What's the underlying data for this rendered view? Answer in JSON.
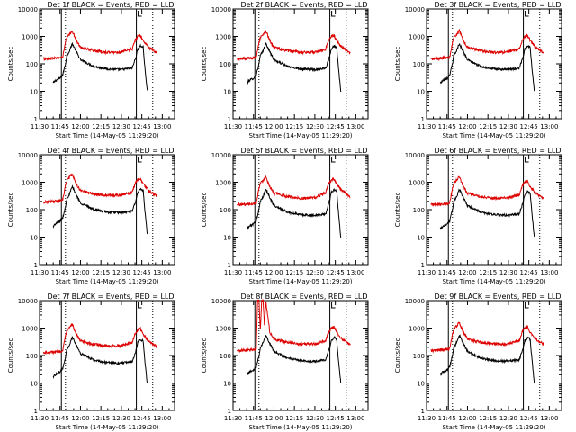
{
  "colors": {
    "background": "#ffffff",
    "axes": "#000000",
    "events": "#000000",
    "lld": "#dd0000"
  },
  "chart_data": {
    "type": "line",
    "layout": "3x3 grid of panels",
    "yscale": "log",
    "ylim": [
      1,
      10000
    ],
    "xlim": [
      "11:30",
      "13:09"
    ],
    "grid": false,
    "xlabel": "Start Time (14-May-05 11:29:20)",
    "ylabel": "Counts/sec",
    "xtick_labels": [
      "11:30",
      "11:45",
      "12:00",
      "12:15",
      "12:30",
      "12:45",
      "13:00"
    ],
    "ytick_labels": [
      "1",
      "10",
      "100",
      "1000",
      "10000"
    ],
    "vertical_marker_lines": {
      "solid": [
        "11:46",
        "12:41"
      ],
      "dotted": [
        "11:49",
        "12:53"
      ]
    },
    "panels": [
      {
        "title": "Det 1f BLACK = Events, RED = LLD",
        "level": 1.0,
        "flare2": 1.0,
        "series": [
          {
            "name": "Events",
            "color": "#000000",
            "x_min": [
              10,
              12,
              15,
              17,
              19,
              20,
              22,
              24,
              30,
              40,
              50,
              60,
              68,
              71,
              72,
              74,
              76,
              77,
              79
            ],
            "y": [
              20,
              25,
              30,
              40,
              100,
              200,
              300,
              550,
              140,
              80,
              65,
              62,
              70,
              200,
              350,
              450,
              400,
              100,
              10
            ]
          },
          {
            "name": "LLD",
            "color": "#dd0000",
            "x_min": [
              3,
              10,
              16,
              17,
              19,
              20,
              22,
              24,
              27,
              30,
              40,
              50,
              60,
              68,
              70,
              72,
              74,
              76,
              80,
              86
            ],
            "y": [
              150,
              160,
              170,
              180,
              600,
              900,
              1200,
              1600,
              700,
              400,
              300,
              260,
              270,
              350,
              700,
              1000,
              1100,
              700,
              400,
              250
            ]
          }
        ]
      },
      {
        "title": "Det 2f BLACK = Events, RED = LLD",
        "level": 1.0,
        "flare2": 1.0,
        "series": [
          {
            "name": "Events",
            "color": "#000000",
            "x_min": [
              10,
              12,
              15,
              17,
              19,
              20,
              22,
              24,
              30,
              40,
              50,
              60,
              68,
              71,
              72,
              74,
              76,
              77,
              79
            ],
            "y": [
              20,
              25,
              30,
              40,
              100,
              200,
              300,
              550,
              140,
              80,
              65,
              62,
              70,
              200,
              350,
              450,
              400,
              100,
              10
            ]
          },
          {
            "name": "LLD",
            "color": "#dd0000",
            "x_min": [
              3,
              10,
              16,
              17,
              19,
              20,
              22,
              24,
              27,
              30,
              40,
              50,
              60,
              68,
              70,
              72,
              74,
              76,
              80,
              86
            ],
            "y": [
              150,
              160,
              170,
              180,
              600,
              900,
              1200,
              1600,
              700,
              400,
              300,
              260,
              270,
              350,
              700,
              1000,
              1100,
              700,
              400,
              250
            ]
          }
        ]
      },
      {
        "title": "Det 3f BLACK = Events, RED = LLD",
        "level": 1.0,
        "flare2": 1.0,
        "series": [
          {
            "name": "Events",
            "color": "#000000",
            "x_min": [
              10,
              12,
              15,
              17,
              19,
              20,
              22,
              24,
              30,
              40,
              50,
              60,
              68,
              71,
              72,
              74,
              76,
              77,
              79
            ],
            "y": [
              20,
              25,
              30,
              40,
              100,
              200,
              300,
              550,
              140,
              80,
              65,
              62,
              70,
              200,
              350,
              450,
              400,
              100,
              10
            ]
          },
          {
            "name": "LLD",
            "color": "#dd0000",
            "x_min": [
              3,
              10,
              16,
              17,
              19,
              20,
              22,
              24,
              27,
              30,
              40,
              50,
              60,
              68,
              70,
              72,
              74,
              76,
              80,
              86
            ],
            "y": [
              150,
              160,
              170,
              180,
              600,
              900,
              1200,
              1600,
              700,
              400,
              300,
              260,
              270,
              350,
              700,
              1000,
              1100,
              700,
              400,
              250
            ]
          }
        ]
      },
      {
        "title": "Det 4f BLACK = Events, RED = LLD",
        "level": 1.25,
        "flare2": 1.1,
        "series": [
          {
            "name": "Events",
            "color": "#000000",
            "x_min": [
              10,
              12,
              15,
              17,
              19,
              20,
              22,
              24,
              30,
              40,
              50,
              60,
              68,
              71,
              72,
              74,
              76,
              77,
              79
            ],
            "y": [
              25,
              31,
              38,
              50,
              125,
              250,
              375,
              690,
              175,
              100,
              81,
              78,
              88,
              250,
              440,
              560,
              500,
              125,
              12
            ]
          },
          {
            "name": "LLD",
            "color": "#dd0000",
            "x_min": [
              3,
              10,
              16,
              17,
              19,
              20,
              22,
              24,
              27,
              30,
              40,
              50,
              60,
              68,
              70,
              72,
              74,
              76,
              80,
              86
            ],
            "y": [
              190,
              200,
              210,
              225,
              750,
              1130,
              1500,
              2000,
              880,
              500,
              380,
              330,
              340,
              440,
              875,
              1250,
              1380,
              880,
              500,
              310
            ]
          }
        ]
      },
      {
        "title": "Det 5f BLACK = Events, RED = LLD",
        "level": 1.0,
        "flare2": 1.2,
        "series": [
          {
            "name": "Events",
            "color": "#000000",
            "x_min": [
              10,
              12,
              15,
              17,
              19,
              20,
              22,
              24,
              30,
              40,
              50,
              60,
              68,
              71,
              72,
              74,
              76,
              77,
              79
            ],
            "y": [
              20,
              25,
              30,
              40,
              100,
              200,
              300,
              550,
              140,
              80,
              65,
              62,
              70,
              240,
              420,
              540,
              480,
              120,
              10
            ]
          },
          {
            "name": "LLD",
            "color": "#dd0000",
            "x_min": [
              3,
              10,
              16,
              17,
              19,
              20,
              22,
              24,
              27,
              30,
              40,
              50,
              60,
              68,
              70,
              72,
              74,
              76,
              80,
              86
            ],
            "y": [
              150,
              160,
              170,
              180,
              600,
              900,
              1200,
              1600,
              700,
              400,
              300,
              260,
              270,
              420,
              840,
              1200,
              1320,
              840,
              480,
              300
            ]
          }
        ]
      },
      {
        "title": "Det 6f BLACK = Events, RED = LLD",
        "level": 1.0,
        "flare2": 1.0,
        "series": [
          {
            "name": "Events",
            "color": "#000000",
            "x_min": [
              10,
              12,
              15,
              17,
              19,
              20,
              22,
              24,
              30,
              40,
              50,
              60,
              68,
              71,
              72,
              74,
              76,
              77,
              79
            ],
            "y": [
              20,
              25,
              30,
              40,
              100,
              200,
              300,
              550,
              140,
              80,
              65,
              62,
              70,
              200,
              350,
              450,
              400,
              100,
              10
            ]
          },
          {
            "name": "LLD",
            "color": "#dd0000",
            "x_min": [
              3,
              10,
              16,
              17,
              19,
              20,
              22,
              24,
              27,
              30,
              40,
              50,
              60,
              68,
              70,
              72,
              74,
              76,
              80,
              86
            ],
            "y": [
              150,
              160,
              170,
              180,
              600,
              900,
              1200,
              1600,
              700,
              400,
              300,
              260,
              270,
              350,
              700,
              1000,
              1100,
              700,
              400,
              250
            ]
          }
        ]
      },
      {
        "title": "Det 7f BLACK = Events, RED = LLD",
        "level": 0.85,
        "flare2": 1.0,
        "series": [
          {
            "name": "Events",
            "color": "#000000",
            "x_min": [
              10,
              12,
              15,
              17,
              19,
              20,
              22,
              24,
              30,
              40,
              50,
              60,
              68,
              71,
              72,
              74,
              76,
              77,
              79
            ],
            "y": [
              17,
              21,
              26,
              34,
              85,
              170,
              255,
              470,
              120,
              68,
              55,
              53,
              60,
              170,
              300,
              380,
              340,
              85,
              9
            ]
          },
          {
            "name": "LLD",
            "color": "#dd0000",
            "x_min": [
              3,
              10,
              16,
              17,
              19,
              20,
              22,
              24,
              27,
              30,
              40,
              50,
              60,
              68,
              70,
              72,
              74,
              76,
              80,
              86
            ],
            "y": [
              130,
              135,
              145,
              150,
              510,
              770,
              1020,
              1360,
              600,
              340,
              255,
              220,
              230,
              300,
              600,
              850,
              940,
              600,
              340,
              210
            ]
          }
        ]
      },
      {
        "title": "Det 8f BLACK = Events, RED = LLD",
        "level": 1.0,
        "flare2": 1.0,
        "series": [
          {
            "name": "Events",
            "color": "#000000",
            "x_min": [
              10,
              12,
              15,
              17,
              19,
              20,
              22,
              24,
              30,
              40,
              50,
              60,
              68,
              71,
              72,
              74,
              76,
              77,
              79
            ],
            "y": [
              20,
              25,
              30,
              40,
              100,
              200,
              300,
              550,
              140,
              80,
              65,
              62,
              70,
              200,
              350,
              450,
              400,
              100,
              10
            ]
          },
          {
            "name": "LLD",
            "color": "#dd0000",
            "x_min": [
              3,
              10,
              16,
              17,
              18,
              19,
              20,
              21,
              22,
              23,
              24,
              27,
              30,
              40,
              50,
              60,
              68,
              70,
              72,
              74,
              76,
              80,
              86
            ],
            "y": [
              150,
              160,
              170,
              180,
              10000,
              10000,
              900,
              10000,
              10000,
              1200,
              10000,
              700,
              400,
              300,
              260,
              270,
              350,
              700,
              1000,
              1100,
              700,
              400,
              250
            ]
          }
        ]
      },
      {
        "title": "Det 9f BLACK = Events, RED = LLD",
        "level": 1.0,
        "flare2": 1.0,
        "series": [
          {
            "name": "Events",
            "color": "#000000",
            "x_min": [
              10,
              12,
              15,
              17,
              19,
              20,
              22,
              24,
              30,
              40,
              50,
              60,
              68,
              71,
              72,
              74,
              76,
              77,
              79
            ],
            "y": [
              20,
              25,
              30,
              40,
              100,
              200,
              300,
              550,
              140,
              80,
              65,
              62,
              70,
              200,
              350,
              450,
              400,
              100,
              10
            ]
          },
          {
            "name": "LLD",
            "color": "#dd0000",
            "x_min": [
              3,
              10,
              16,
              17,
              19,
              20,
              22,
              24,
              27,
              30,
              40,
              50,
              60,
              68,
              70,
              72,
              74,
              76,
              80,
              86
            ],
            "y": [
              150,
              160,
              170,
              180,
              600,
              900,
              1200,
              1600,
              700,
              400,
              300,
              260,
              270,
              350,
              700,
              1000,
              1100,
              700,
              400,
              250
            ]
          }
        ]
      }
    ]
  }
}
